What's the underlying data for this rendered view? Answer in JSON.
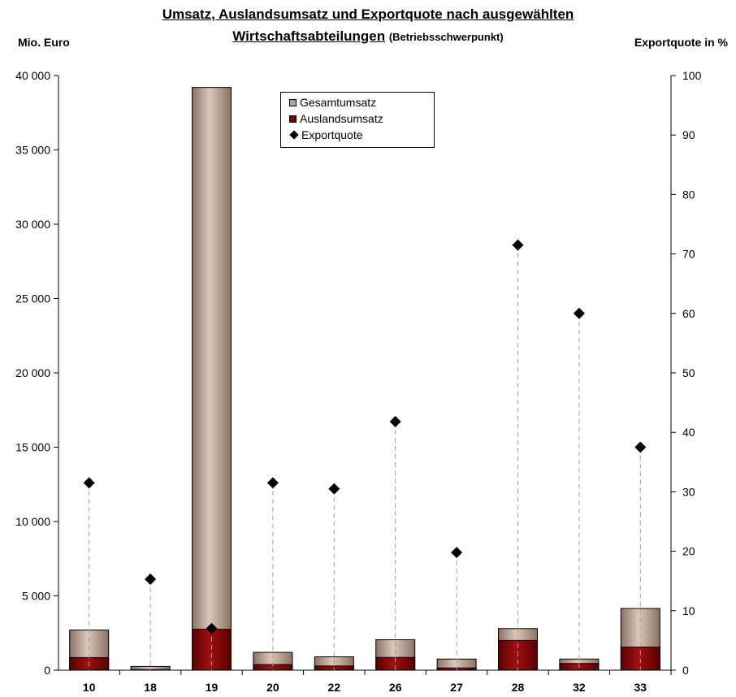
{
  "chart_data": {
    "type": "bar",
    "title_line1": "Umsatz, Auslandsumsatz und Exportquote nach ausgewählten",
    "title_line2": "Wirtschaftsabteilungen",
    "title_suffix": "(Betriebsschwerpunkt)",
    "ylabel_left": "Mio. Euro",
    "ylabel_right": "Exportquote in %",
    "ylim_left": [
      0,
      40000
    ],
    "ylim_right": [
      0,
      100
    ],
    "left_ticks": [
      "0",
      "5 000",
      "10 000",
      "15 000",
      "20 000",
      "25 000",
      "30 000",
      "35 000",
      "40 000"
    ],
    "right_ticks": [
      "0",
      "10",
      "20",
      "30",
      "40",
      "50",
      "60",
      "70",
      "80",
      "90",
      "100"
    ],
    "categories": [
      "10",
      "18",
      "19",
      "20",
      "22",
      "26",
      "27",
      "28",
      "32",
      "33"
    ],
    "series": [
      {
        "name": "Gesamtumsatz",
        "axis": "left",
        "kind": "bar",
        "color": "#b8a090",
        "values": [
          2700,
          250,
          39200,
          1200,
          900,
          2050,
          750,
          2800,
          750,
          4150
        ]
      },
      {
        "name": "Auslandsumsatz",
        "axis": "left",
        "kind": "bar",
        "color": "#7a0000",
        "values": [
          850,
          40,
          2750,
          380,
          280,
          860,
          150,
          2000,
          450,
          1560
        ]
      },
      {
        "name": "Exportquote",
        "axis": "right",
        "kind": "marker",
        "color": "#000000",
        "values": [
          31.5,
          15.3,
          7.0,
          31.5,
          30.5,
          41.8,
          19.8,
          71.5,
          60.0,
          37.5
        ]
      }
    ],
    "legend_position": "top-center",
    "grid": false
  }
}
